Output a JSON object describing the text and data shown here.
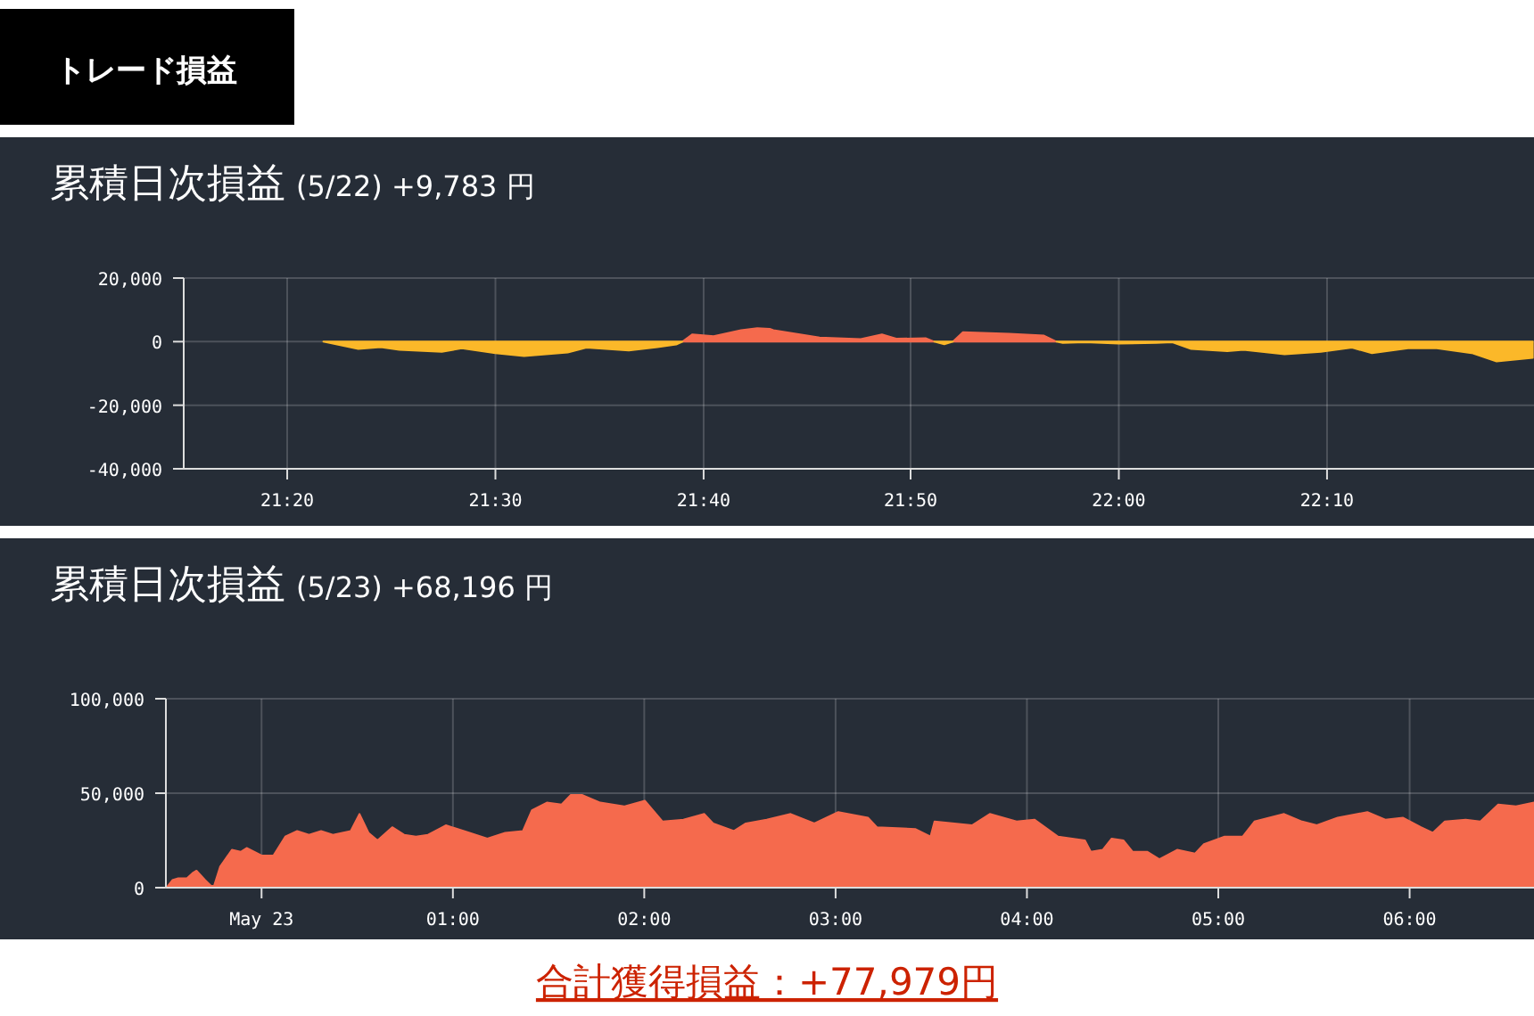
{
  "chart_data": [
    {
      "type": "other",
      "title": "トレード損益"
    },
    {
      "type": "area",
      "title": "累積日次損益",
      "subtitle": "(5/22) +9,783 円",
      "grid": true,
      "xlim": [
        21.25,
        22.333
      ],
      "xticks": [
        {
          "value": 21.333,
          "label": "21:20"
        },
        {
          "value": 21.5,
          "label": "21:30"
        },
        {
          "value": 21.667,
          "label": "21:40"
        },
        {
          "value": 21.833,
          "label": "21:50"
        },
        {
          "value": 22.0,
          "label": "22:00"
        },
        {
          "value": 22.167,
          "label": "22:10"
        }
      ],
      "ylim": [
        -40000,
        20000
      ],
      "yticks": [
        {
          "value": 20000,
          "label": "20,000"
        },
        0,
        {
          "value": -20000,
          "label": "-20,000"
        },
        {
          "value": -40000,
          "label": "-40,000"
        }
      ],
      "x": [
        21.362,
        21.39,
        21.408,
        21.423,
        21.457,
        21.473,
        21.5,
        21.523,
        21.558,
        21.573,
        21.607,
        21.63,
        21.645,
        21.65,
        21.658,
        21.675,
        21.697,
        21.71,
        21.72,
        21.723,
        21.76,
        21.793,
        21.81,
        21.822,
        21.845,
        21.852,
        21.86,
        21.867,
        21.875,
        21.912,
        21.94,
        21.95,
        21.955,
        21.973,
        22.0,
        22.03,
        22.043,
        22.058,
        22.087,
        22.1,
        22.133,
        22.162,
        22.187,
        22.203,
        22.232,
        22.255,
        22.283,
        22.303,
        22.332
      ],
      "series": [
        {
          "color": "#f56a4d",
          "values": [
            null,
            null,
            null,
            null,
            null,
            null,
            null,
            null,
            null,
            null,
            null,
            null,
            null,
            0,
            2300,
            1700,
            3600,
            4200,
            4000,
            3600,
            1300,
            800,
            2300,
            900,
            1100,
            0,
            null,
            0,
            3000,
            2500,
            1900,
            0,
            null,
            null,
            null,
            null,
            null,
            null,
            null,
            null,
            null,
            null,
            null,
            null,
            null,
            null,
            null,
            null,
            null
          ]
        },
        {
          "color": "#fbb829",
          "values": [
            0,
            -2300,
            -1700,
            -2600,
            -3200,
            -2100,
            -3600,
            -4500,
            -3400,
            -1900,
            -2800,
            -1700,
            -900,
            0,
            null,
            null,
            null,
            null,
            null,
            null,
            null,
            null,
            null,
            null,
            null,
            0,
            -800,
            0,
            null,
            null,
            null,
            0,
            -400,
            -200,
            -600,
            -400,
            -200,
            -2300,
            -3000,
            -2600,
            -4000,
            -3200,
            -1900,
            -3600,
            -2100,
            -2100,
            -3600,
            -6200,
            -5100
          ]
        }
      ]
    },
    {
      "type": "area",
      "title": "累積日次損益",
      "subtitle": "(5/23) +68,196 円",
      "grid": true,
      "xlim": [
        -0.5,
        6.65
      ],
      "xticks": [
        {
          "value": 0,
          "label": "May 23"
        },
        {
          "value": 1,
          "label": "01:00"
        },
        {
          "value": 2,
          "label": "02:00"
        },
        {
          "value": 3,
          "label": "03:00"
        },
        {
          "value": 4,
          "label": "04:00"
        },
        {
          "value": 5,
          "label": "05:00"
        },
        {
          "value": 6,
          "label": "06:00"
        }
      ],
      "ylim": [
        0,
        100000
      ],
      "yticks": [
        {
          "value": 100000,
          "label": "100,000"
        },
        {
          "value": 50000,
          "label": "50,000"
        },
        0
      ],
      "annotations": [
        "合計獲得損益：+77,979円"
      ],
      "x": [
        -0.497,
        -0.466,
        -0.435,
        -0.39,
        -0.357,
        -0.34,
        -0.295,
        -0.264,
        -0.248,
        -0.217,
        -0.155,
        -0.109,
        -0.078,
        0,
        0.062,
        0.124,
        0.186,
        0.248,
        0.311,
        0.373,
        0.466,
        0.512,
        0.559,
        0.606,
        0.683,
        0.745,
        0.807,
        0.87,
        0.963,
        1.087,
        1.18,
        1.273,
        1.366,
        1.413,
        1.491,
        1.568,
        1.615,
        1.677,
        1.77,
        1.894,
        2.003,
        2.096,
        2.205,
        2.314,
        2.36,
        2.469,
        2.531,
        2.64,
        2.765,
        2.889,
        3.014,
        3.169,
        3.216,
        3.418,
        3.496,
        3.517,
        3.713,
        3.806,
        3.946,
        4.039,
        4.163,
        4.303,
        4.334,
        4.396,
        4.443,
        4.505,
        4.552,
        4.63,
        4.692,
        4.785,
        4.878,
        4.925,
        5.033,
        5.127,
        5.189,
        5.344,
        5.438,
        5.515,
        5.624,
        5.779,
        5.873,
        5.966,
        6.059,
        6.121,
        6.184,
        6.293,
        6.37,
        6.463,
        6.556,
        6.65
      ],
      "series": [
        {
          "color": "#f56a4d",
          "values": [
            0,
            4000,
            5000,
            5000,
            8000,
            9000,
            4000,
            1000,
            1000,
            11000,
            20000,
            19000,
            21000,
            17000,
            17000,
            27000,
            30000,
            28000,
            30000,
            28000,
            30000,
            39000,
            29000,
            25000,
            32000,
            28000,
            27000,
            28000,
            33000,
            29000,
            26000,
            29000,
            30000,
            41000,
            45000,
            44000,
            49000,
            49000,
            45000,
            43000,
            46000,
            35000,
            36000,
            39000,
            34000,
            30000,
            34000,
            36000,
            39000,
            34000,
            40000,
            37000,
            32000,
            31000,
            27000,
            35000,
            33000,
            39000,
            35000,
            36000,
            27000,
            25000,
            19000,
            20000,
            26000,
            25000,
            19000,
            19000,
            15000,
            20000,
            18000,
            23000,
            27000,
            27000,
            35000,
            39000,
            35000,
            33000,
            37000,
            40000,
            36000,
            37000,
            32000,
            29000,
            35000,
            36000,
            35000,
            44000,
            43000,
            45000
          ]
        }
      ]
    }
  ]
}
